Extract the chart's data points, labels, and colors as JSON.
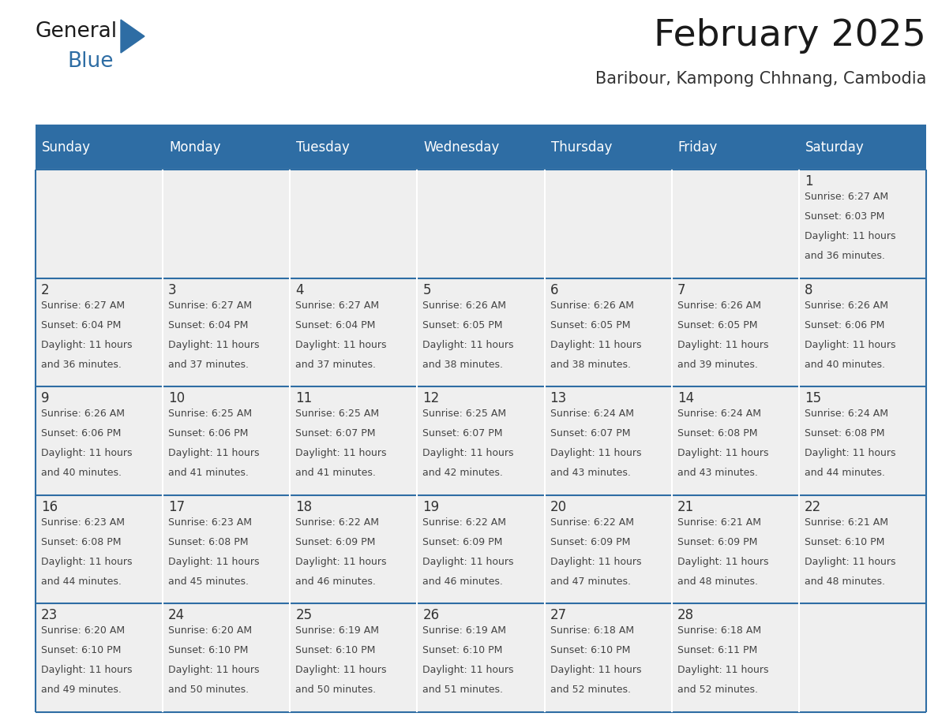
{
  "title": "February 2025",
  "subtitle": "Baribour, Kampong Chhnang, Cambodia",
  "days_of_week": [
    "Sunday",
    "Monday",
    "Tuesday",
    "Wednesday",
    "Thursday",
    "Friday",
    "Saturday"
  ],
  "header_bg": "#2E6DA4",
  "header_text": "#FFFFFF",
  "cell_bg_light": "#EFEFEF",
  "cell_bg_white": "#FFFFFF",
  "line_color": "#2E6DA4",
  "text_color": "#444444",
  "day_num_color": "#2E6DA4",
  "calendar_data": [
    [
      null,
      null,
      null,
      null,
      null,
      null,
      {
        "day": 1,
        "sunrise": "6:27 AM",
        "sunset": "6:03 PM",
        "daylight_line1": "Daylight: 11 hours",
        "daylight_line2": "and 36 minutes."
      }
    ],
    [
      {
        "day": 2,
        "sunrise": "6:27 AM",
        "sunset": "6:04 PM",
        "daylight_line1": "Daylight: 11 hours",
        "daylight_line2": "and 36 minutes."
      },
      {
        "day": 3,
        "sunrise": "6:27 AM",
        "sunset": "6:04 PM",
        "daylight_line1": "Daylight: 11 hours",
        "daylight_line2": "and 37 minutes."
      },
      {
        "day": 4,
        "sunrise": "6:27 AM",
        "sunset": "6:04 PM",
        "daylight_line1": "Daylight: 11 hours",
        "daylight_line2": "and 37 minutes."
      },
      {
        "day": 5,
        "sunrise": "6:26 AM",
        "sunset": "6:05 PM",
        "daylight_line1": "Daylight: 11 hours",
        "daylight_line2": "and 38 minutes."
      },
      {
        "day": 6,
        "sunrise": "6:26 AM",
        "sunset": "6:05 PM",
        "daylight_line1": "Daylight: 11 hours",
        "daylight_line2": "and 38 minutes."
      },
      {
        "day": 7,
        "sunrise": "6:26 AM",
        "sunset": "6:05 PM",
        "daylight_line1": "Daylight: 11 hours",
        "daylight_line2": "and 39 minutes."
      },
      {
        "day": 8,
        "sunrise": "6:26 AM",
        "sunset": "6:06 PM",
        "daylight_line1": "Daylight: 11 hours",
        "daylight_line2": "and 40 minutes."
      }
    ],
    [
      {
        "day": 9,
        "sunrise": "6:26 AM",
        "sunset": "6:06 PM",
        "daylight_line1": "Daylight: 11 hours",
        "daylight_line2": "and 40 minutes."
      },
      {
        "day": 10,
        "sunrise": "6:25 AM",
        "sunset": "6:06 PM",
        "daylight_line1": "Daylight: 11 hours",
        "daylight_line2": "and 41 minutes."
      },
      {
        "day": 11,
        "sunrise": "6:25 AM",
        "sunset": "6:07 PM",
        "daylight_line1": "Daylight: 11 hours",
        "daylight_line2": "and 41 minutes."
      },
      {
        "day": 12,
        "sunrise": "6:25 AM",
        "sunset": "6:07 PM",
        "daylight_line1": "Daylight: 11 hours",
        "daylight_line2": "and 42 minutes."
      },
      {
        "day": 13,
        "sunrise": "6:24 AM",
        "sunset": "6:07 PM",
        "daylight_line1": "Daylight: 11 hours",
        "daylight_line2": "and 43 minutes."
      },
      {
        "day": 14,
        "sunrise": "6:24 AM",
        "sunset": "6:08 PM",
        "daylight_line1": "Daylight: 11 hours",
        "daylight_line2": "and 43 minutes."
      },
      {
        "day": 15,
        "sunrise": "6:24 AM",
        "sunset": "6:08 PM",
        "daylight_line1": "Daylight: 11 hours",
        "daylight_line2": "and 44 minutes."
      }
    ],
    [
      {
        "day": 16,
        "sunrise": "6:23 AM",
        "sunset": "6:08 PM",
        "daylight_line1": "Daylight: 11 hours",
        "daylight_line2": "and 44 minutes."
      },
      {
        "day": 17,
        "sunrise": "6:23 AM",
        "sunset": "6:08 PM",
        "daylight_line1": "Daylight: 11 hours",
        "daylight_line2": "and 45 minutes."
      },
      {
        "day": 18,
        "sunrise": "6:22 AM",
        "sunset": "6:09 PM",
        "daylight_line1": "Daylight: 11 hours",
        "daylight_line2": "and 46 minutes."
      },
      {
        "day": 19,
        "sunrise": "6:22 AM",
        "sunset": "6:09 PM",
        "daylight_line1": "Daylight: 11 hours",
        "daylight_line2": "and 46 minutes."
      },
      {
        "day": 20,
        "sunrise": "6:22 AM",
        "sunset": "6:09 PM",
        "daylight_line1": "Daylight: 11 hours",
        "daylight_line2": "and 47 minutes."
      },
      {
        "day": 21,
        "sunrise": "6:21 AM",
        "sunset": "6:09 PM",
        "daylight_line1": "Daylight: 11 hours",
        "daylight_line2": "and 48 minutes."
      },
      {
        "day": 22,
        "sunrise": "6:21 AM",
        "sunset": "6:10 PM",
        "daylight_line1": "Daylight: 11 hours",
        "daylight_line2": "and 48 minutes."
      }
    ],
    [
      {
        "day": 23,
        "sunrise": "6:20 AM",
        "sunset": "6:10 PM",
        "daylight_line1": "Daylight: 11 hours",
        "daylight_line2": "and 49 minutes."
      },
      {
        "day": 24,
        "sunrise": "6:20 AM",
        "sunset": "6:10 PM",
        "daylight_line1": "Daylight: 11 hours",
        "daylight_line2": "and 50 minutes."
      },
      {
        "day": 25,
        "sunrise": "6:19 AM",
        "sunset": "6:10 PM",
        "daylight_line1": "Daylight: 11 hours",
        "daylight_line2": "and 50 minutes."
      },
      {
        "day": 26,
        "sunrise": "6:19 AM",
        "sunset": "6:10 PM",
        "daylight_line1": "Daylight: 11 hours",
        "daylight_line2": "and 51 minutes."
      },
      {
        "day": 27,
        "sunrise": "6:18 AM",
        "sunset": "6:10 PM",
        "daylight_line1": "Daylight: 11 hours",
        "daylight_line2": "and 52 minutes."
      },
      {
        "day": 28,
        "sunrise": "6:18 AM",
        "sunset": "6:11 PM",
        "daylight_line1": "Daylight: 11 hours",
        "daylight_line2": "and 52 minutes."
      },
      null
    ]
  ],
  "figsize": [
    11.88,
    9.18
  ],
  "dpi": 100
}
